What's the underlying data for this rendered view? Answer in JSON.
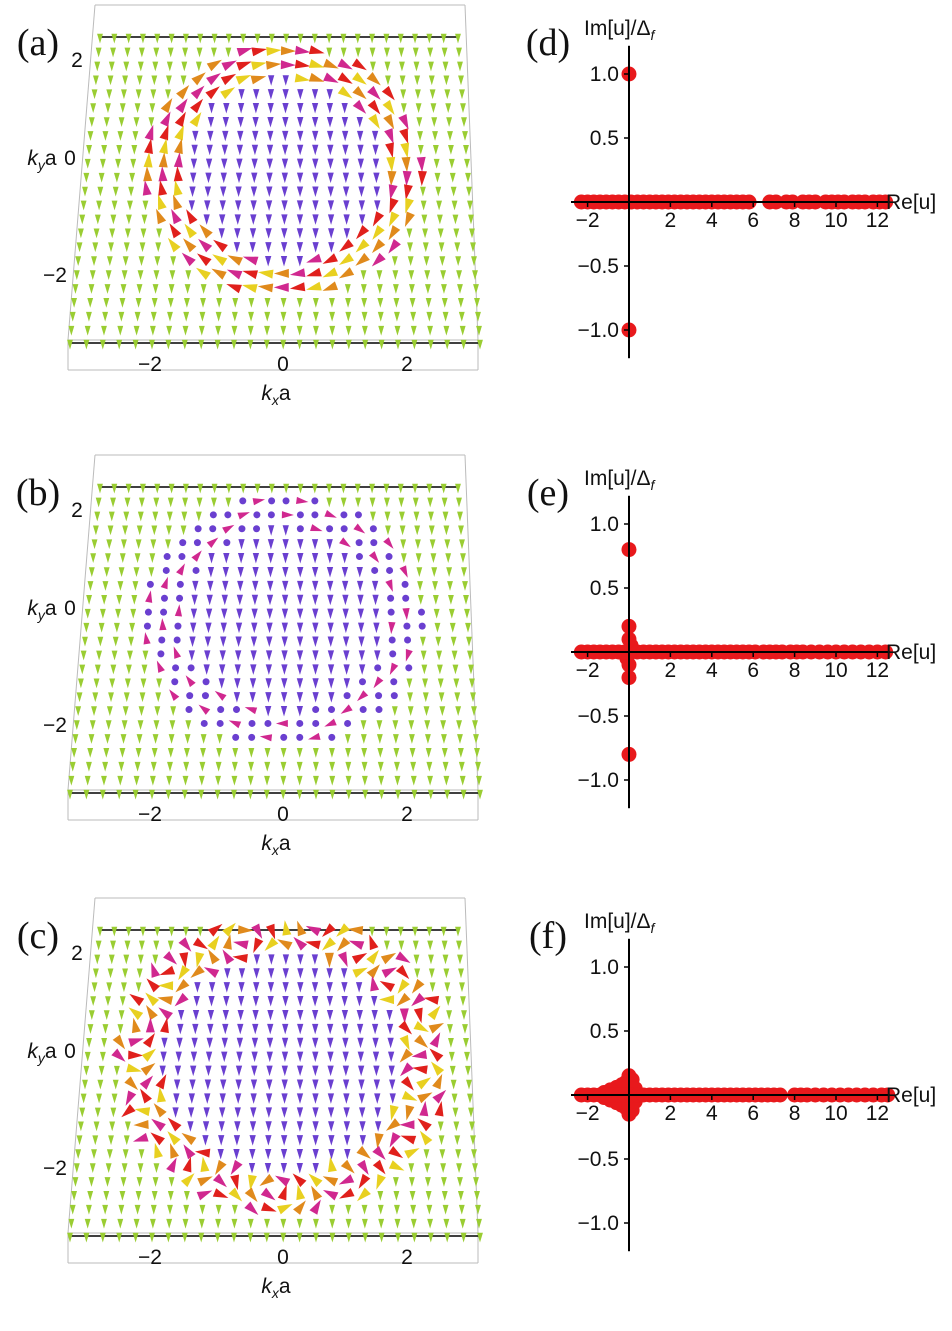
{
  "colors": {
    "fermi_sea_arrow": "#9acd32",
    "inner_arrow": "#6a3fd0",
    "boundary_red": "#e0201c",
    "boundary_magenta": "#d0288f",
    "boundary_orange": "#e08a1c",
    "boundary_yellow": "#e8d020",
    "point_red": "#e8191c",
    "axis": "#000000"
  },
  "panels_left": [
    {
      "label": "(a)",
      "x_label_k": "k",
      "x_label_sub": "x",
      "x_label_rest": "a",
      "y_label_k": "k",
      "y_label_sub": "y",
      "y_label_rest": "a",
      "x_ticks": [
        "−2",
        "0",
        "2"
      ],
      "y_ticks": [
        "2",
        "0",
        "−2"
      ]
    },
    {
      "label": "(b)",
      "x_label_k": "k",
      "x_label_sub": "x",
      "x_label_rest": "a",
      "y_label_k": "k",
      "y_label_sub": "y",
      "y_label_rest": "a",
      "x_ticks": [
        "−2",
        "0",
        "2"
      ],
      "y_ticks": [
        "2",
        "0",
        "−2"
      ]
    },
    {
      "label": "(c)",
      "x_label_k": "k",
      "x_label_sub": "x",
      "x_label_rest": "a",
      "y_label_k": "k",
      "y_label_sub": "y",
      "y_label_rest": "a",
      "x_ticks": [
        "−2",
        "0",
        "2"
      ],
      "y_ticks": [
        "2",
        "0",
        "−2"
      ]
    }
  ],
  "panels_right": [
    {
      "label": "(d)",
      "y_title_main": "Im[u]/Δ",
      "y_title_sub": "f",
      "x_title": "Re[u]",
      "x_ticks": [
        "−2",
        "2",
        "4",
        "6",
        "8",
        "10",
        "12"
      ],
      "y_ticks": [
        "1.0",
        "0.5",
        "−0.5",
        "−1.0"
      ]
    },
    {
      "label": "(e)",
      "y_title_main": "Im[u]/Δ",
      "y_title_sub": "f",
      "x_title": "Re[u]",
      "x_ticks": [
        "−2",
        "2",
        "4",
        "6",
        "8",
        "10",
        "12"
      ],
      "y_ticks": [
        "1.0",
        "0.5",
        "−0.5",
        "−1.0"
      ]
    },
    {
      "label": "(f)",
      "y_title_main": "Im[u]/Δ",
      "y_title_sub": "f",
      "x_title": "Re[u]",
      "x_ticks": [
        "−2",
        "2",
        "4",
        "6",
        "8",
        "10",
        "12"
      ],
      "y_ticks": [
        "1.0",
        "0.5",
        "−0.5",
        "−1.0"
      ]
    }
  ],
  "chart_data": [
    {
      "type": "scatter",
      "panel": "(a)",
      "description_free": true,
      "x_range": [
        -3.14,
        3.14
      ],
      "y_range": [
        -3.14,
        3.14
      ],
      "fermi_radius_kx": 1.6,
      "fermi_radius_ky": 1.5,
      "boundary_pattern": "smooth"
    },
    {
      "type": "scatter",
      "panel": "(b)",
      "x_range": [
        -3.14,
        3.14
      ],
      "y_range": [
        -3.14,
        3.14
      ],
      "fermi_radius_kx": 1.6,
      "fermi_radius_ky": 1.5,
      "boundary_pattern": "sparse"
    },
    {
      "type": "scatter",
      "panel": "(c)",
      "x_range": [
        -3.14,
        3.14
      ],
      "y_range": [
        -3.14,
        3.14
      ],
      "fermi_radius_kx": 1.9,
      "fermi_radius_ky": 1.8,
      "boundary_pattern": "disordered"
    },
    {
      "type": "scatter",
      "panel": "(d)",
      "xlim": [
        -2.5,
        13
      ],
      "ylim": [
        -1.2,
        1.2
      ],
      "points": [
        [
          0,
          1.0
        ],
        [
          0,
          -1.0
        ],
        [
          -2.3,
          0
        ],
        [
          -2.0,
          0
        ],
        [
          -1.7,
          0
        ],
        [
          -1.4,
          0
        ],
        [
          -1.1,
          0
        ],
        [
          -0.8,
          0
        ],
        [
          -0.5,
          0
        ],
        [
          -0.2,
          0
        ],
        [
          0.1,
          0
        ],
        [
          0.4,
          0
        ],
        [
          0.7,
          0
        ],
        [
          1.0,
          0
        ],
        [
          1.3,
          0
        ],
        [
          1.6,
          0
        ],
        [
          1.9,
          0
        ],
        [
          2.2,
          0
        ],
        [
          2.5,
          0
        ],
        [
          2.8,
          0
        ],
        [
          3.1,
          0
        ],
        [
          3.4,
          0
        ],
        [
          3.7,
          0
        ],
        [
          4.0,
          0
        ],
        [
          4.3,
          0
        ],
        [
          4.6,
          0
        ],
        [
          4.9,
          0
        ],
        [
          5.2,
          0
        ],
        [
          5.5,
          0
        ],
        [
          5.8,
          0
        ],
        [
          6.8,
          0
        ],
        [
          7.1,
          0
        ],
        [
          7.6,
          0
        ],
        [
          7.9,
          0
        ],
        [
          8.4,
          0
        ],
        [
          8.7,
          0
        ],
        [
          9.0,
          0
        ],
        [
          9.5,
          0
        ],
        [
          9.8,
          0
        ],
        [
          10.1,
          0
        ],
        [
          10.4,
          0
        ],
        [
          10.8,
          0
        ],
        [
          11.1,
          0
        ],
        [
          11.4,
          0
        ],
        [
          11.8,
          0
        ],
        [
          12.1,
          0
        ],
        [
          12.4,
          0
        ]
      ]
    },
    {
      "type": "scatter",
      "panel": "(e)",
      "xlim": [
        -2.5,
        13
      ],
      "ylim": [
        -1.2,
        1.2
      ],
      "points": [
        [
          0,
          0.8
        ],
        [
          0,
          -0.8
        ],
        [
          0,
          0.2
        ],
        [
          0,
          -0.2
        ],
        [
          0,
          0.1
        ],
        [
          0,
          -0.1
        ],
        [
          0.1,
          0.05
        ],
        [
          -0.1,
          -0.05
        ],
        [
          -2.3,
          0
        ],
        [
          -2.0,
          0
        ],
        [
          -1.7,
          0
        ],
        [
          -1.4,
          0
        ],
        [
          -1.1,
          0
        ],
        [
          -0.8,
          0
        ],
        [
          -0.5,
          0
        ],
        [
          -0.2,
          0
        ],
        [
          0.1,
          0
        ],
        [
          0.4,
          0
        ],
        [
          0.7,
          0
        ],
        [
          1.0,
          0
        ],
        [
          1.3,
          0
        ],
        [
          1.6,
          0
        ],
        [
          1.9,
          0
        ],
        [
          2.2,
          0
        ],
        [
          2.5,
          0
        ],
        [
          2.8,
          0
        ],
        [
          3.1,
          0
        ],
        [
          3.4,
          0
        ],
        [
          3.7,
          0
        ],
        [
          4.0,
          0
        ],
        [
          4.3,
          0
        ],
        [
          4.6,
          0
        ],
        [
          4.9,
          0
        ],
        [
          5.2,
          0
        ],
        [
          5.5,
          0
        ],
        [
          5.8,
          0
        ],
        [
          6.1,
          0
        ],
        [
          6.5,
          0
        ],
        [
          6.8,
          0
        ],
        [
          7.1,
          0
        ],
        [
          7.4,
          0
        ],
        [
          7.8,
          0
        ],
        [
          8.1,
          0
        ],
        [
          8.4,
          0
        ],
        [
          8.8,
          0
        ],
        [
          9.2,
          0
        ],
        [
          9.6,
          0
        ],
        [
          10.0,
          0
        ],
        [
          10.4,
          0
        ],
        [
          10.8,
          0
        ],
        [
          11.2,
          0
        ],
        [
          11.6,
          0
        ],
        [
          12.0,
          0
        ],
        [
          12.4,
          0
        ]
      ]
    },
    {
      "type": "scatter",
      "panel": "(f)",
      "xlim": [
        -2.5,
        13
      ],
      "ylim": [
        -1.2,
        1.2
      ],
      "points": [
        [
          0,
          0.15
        ],
        [
          0,
          -0.15
        ],
        [
          0.15,
          0.12
        ],
        [
          0.15,
          -0.12
        ],
        [
          -0.15,
          0.1
        ],
        [
          -0.15,
          -0.1
        ],
        [
          -0.35,
          0.08
        ],
        [
          -0.35,
          -0.08
        ],
        [
          -0.6,
          0.06
        ],
        [
          -0.6,
          -0.06
        ],
        [
          -0.9,
          0.04
        ],
        [
          -0.9,
          -0.04
        ],
        [
          -1.2,
          0.02
        ],
        [
          -1.2,
          -0.02
        ],
        [
          0,
          0.08
        ],
        [
          0,
          -0.08
        ],
        [
          0.3,
          0.05
        ],
        [
          0.3,
          -0.05
        ],
        [
          -2.3,
          0
        ],
        [
          -2.0,
          0
        ],
        [
          -1.7,
          0
        ],
        [
          -1.4,
          0
        ],
        [
          -1.1,
          0
        ],
        [
          -0.8,
          0
        ],
        [
          -0.5,
          0
        ],
        [
          -0.2,
          0
        ],
        [
          0.1,
          0
        ],
        [
          0.4,
          0
        ],
        [
          0.7,
          0
        ],
        [
          1.0,
          0
        ],
        [
          1.3,
          0
        ],
        [
          1.6,
          0
        ],
        [
          1.9,
          0
        ],
        [
          2.2,
          0
        ],
        [
          2.5,
          0
        ],
        [
          2.8,
          0
        ],
        [
          3.1,
          0
        ],
        [
          3.4,
          0
        ],
        [
          3.7,
          0
        ],
        [
          4.0,
          0
        ],
        [
          4.3,
          0
        ],
        [
          4.6,
          0
        ],
        [
          4.9,
          0
        ],
        [
          5.2,
          0
        ],
        [
          5.5,
          0
        ],
        [
          5.8,
          0
        ],
        [
          6.1,
          0
        ],
        [
          6.4,
          0
        ],
        [
          6.7,
          0
        ],
        [
          7.0,
          0
        ],
        [
          7.3,
          0
        ],
        [
          8.0,
          0
        ],
        [
          8.3,
          0
        ],
        [
          8.6,
          0
        ],
        [
          9.0,
          0
        ],
        [
          9.4,
          0
        ],
        [
          9.8,
          0
        ],
        [
          10.2,
          0
        ],
        [
          10.6,
          0
        ],
        [
          11.0,
          0
        ],
        [
          11.4,
          0
        ],
        [
          11.8,
          0
        ],
        [
          12.2,
          0
        ],
        [
          12.5,
          0
        ]
      ]
    }
  ]
}
